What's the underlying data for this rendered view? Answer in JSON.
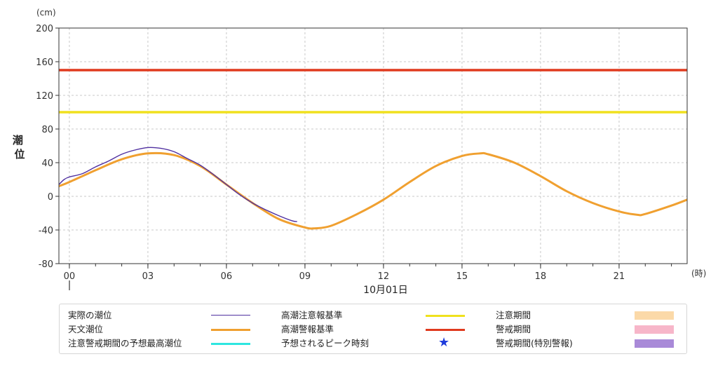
{
  "chart_data": {
    "type": "line",
    "unit_label": "(cm)",
    "ylabel": "潮位",
    "x_unit_label": "(時)",
    "date_label": "10月01日",
    "ylim": [
      -80,
      200
    ],
    "y_ticks": [
      "200",
      "160",
      "120",
      "80",
      "40",
      "0",
      "-40",
      "-80"
    ],
    "x_ticks": [
      "00",
      "03",
      "06",
      "09",
      "12",
      "15",
      "18",
      "21"
    ],
    "x_range_hours": [
      -0.4,
      23.6
    ],
    "grid": true,
    "thresholds": [
      {
        "name": "高潮注意報基準",
        "value": 100,
        "color": "#f0e11e"
      },
      {
        "name": "高潮警報基準",
        "value": 150,
        "color": "#e03a1e"
      }
    ],
    "series": [
      {
        "name": "天文潮位",
        "color": "#f0a030",
        "x": [
          -0.4,
          0,
          1,
          2,
          3,
          4,
          5,
          6,
          7,
          8,
          9,
          9.4,
          10,
          11,
          12,
          13,
          14,
          15,
          15.7,
          16,
          17,
          18,
          19,
          20,
          21,
          21.7,
          22,
          23,
          23.6
        ],
        "y": [
          12,
          17,
          31,
          44,
          51,
          49,
          36,
          14,
          -8,
          -27,
          -37,
          -38,
          -35,
          -21,
          -4,
          17,
          36,
          48,
          51,
          50,
          40,
          24,
          6,
          -8,
          -18,
          -22,
          -21,
          -11,
          -4
        ]
      },
      {
        "name": "実際の潮位",
        "color": "#5030a0",
        "x": [
          -0.4,
          -0.2,
          0,
          0.5,
          1,
          1.5,
          2,
          2.5,
          3,
          3.5,
          4,
          4.5,
          5,
          5.5,
          6,
          6.5,
          7,
          7.5,
          8,
          8.5,
          8.7
        ],
        "y": [
          14,
          20,
          23,
          27,
          35,
          42,
          50,
          55,
          58,
          57,
          53,
          45,
          37,
          26,
          14,
          2,
          -8,
          -16,
          -23,
          -29,
          -30
        ]
      }
    ],
    "legend": [
      {
        "label": "実際の潮位",
        "kind": "line",
        "color": "#5030a0"
      },
      {
        "label": "高潮注意報基準",
        "kind": "line",
        "color": "#f0e11e"
      },
      {
        "label": "注意期間",
        "kind": "box",
        "color": "#fbd9a8"
      },
      {
        "label": "天文潮位",
        "kind": "line",
        "color": "#f0a030"
      },
      {
        "label": "高潮警報基準",
        "kind": "line",
        "color": "#e03a1e"
      },
      {
        "label": "警戒期間",
        "kind": "box",
        "color": "#f7b6c9"
      },
      {
        "label": "注意警戒期間の予想最高潮位",
        "kind": "line",
        "color": "#2ee6e0"
      },
      {
        "label": "予想されるピーク時刻",
        "kind": "star",
        "color": "#1e3cdc"
      },
      {
        "label": "警戒期間(特別警報)",
        "kind": "box",
        "color": "#a98ad8"
      }
    ]
  }
}
